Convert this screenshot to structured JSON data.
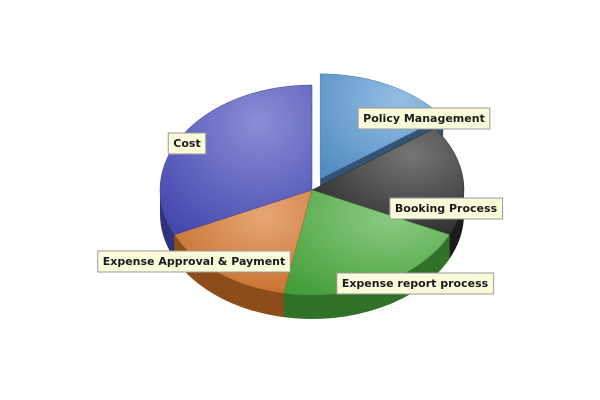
{
  "chart_data": {
    "type": "pie",
    "style": "3d-exploded",
    "slices": [
      {
        "label": "Policy Management",
        "value": 15,
        "color": "#5b9bd5",
        "exploded": true
      },
      {
        "label": "Booking Process",
        "value": 17,
        "color": "#2a2a2a",
        "exploded": false
      },
      {
        "label": "Expense report process",
        "value": 21,
        "color": "#4caf3f",
        "exploded": false
      },
      {
        "label": "Expense Approval & Payment",
        "value": 15,
        "color": "#d9762a",
        "exploded": false
      },
      {
        "label": "Cost",
        "value": 32,
        "color": "#4b4fc0",
        "exploded": false
      }
    ],
    "legend": "none"
  }
}
